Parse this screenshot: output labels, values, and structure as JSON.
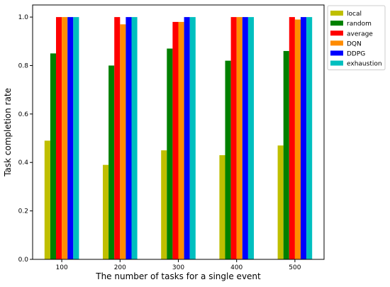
{
  "chart_data": {
    "type": "bar",
    "title": "",
    "xlabel": "The number of tasks for a single event",
    "ylabel": "Task completion rate",
    "categories": [
      "100",
      "200",
      "300",
      "400",
      "500"
    ],
    "ylim": [
      0,
      1.05
    ],
    "yticks": [
      "0.0",
      "0.2",
      "0.4",
      "0.6",
      "0.8",
      "1.0"
    ],
    "grid": false,
    "legend_position": "outside-top-right",
    "series": [
      {
        "name": "local",
        "color": "#bfbf00",
        "values": [
          0.49,
          0.39,
          0.45,
          0.43,
          0.47
        ]
      },
      {
        "name": "random",
        "color": "#008000",
        "values": [
          0.85,
          0.8,
          0.87,
          0.82,
          0.86
        ]
      },
      {
        "name": "average",
        "color": "#ff0000",
        "values": [
          1.0,
          1.0,
          0.98,
          1.0,
          1.0
        ]
      },
      {
        "name": "DQN",
        "color": "#ff8c00",
        "values": [
          1.0,
          0.97,
          0.98,
          1.0,
          0.99
        ]
      },
      {
        "name": "DDPG",
        "color": "#0000ff",
        "values": [
          1.0,
          1.0,
          1.0,
          1.0,
          1.0
        ]
      },
      {
        "name": "exhaustion",
        "color": "#00bfbf",
        "values": [
          1.0,
          1.0,
          1.0,
          1.0,
          1.0
        ]
      }
    ]
  }
}
